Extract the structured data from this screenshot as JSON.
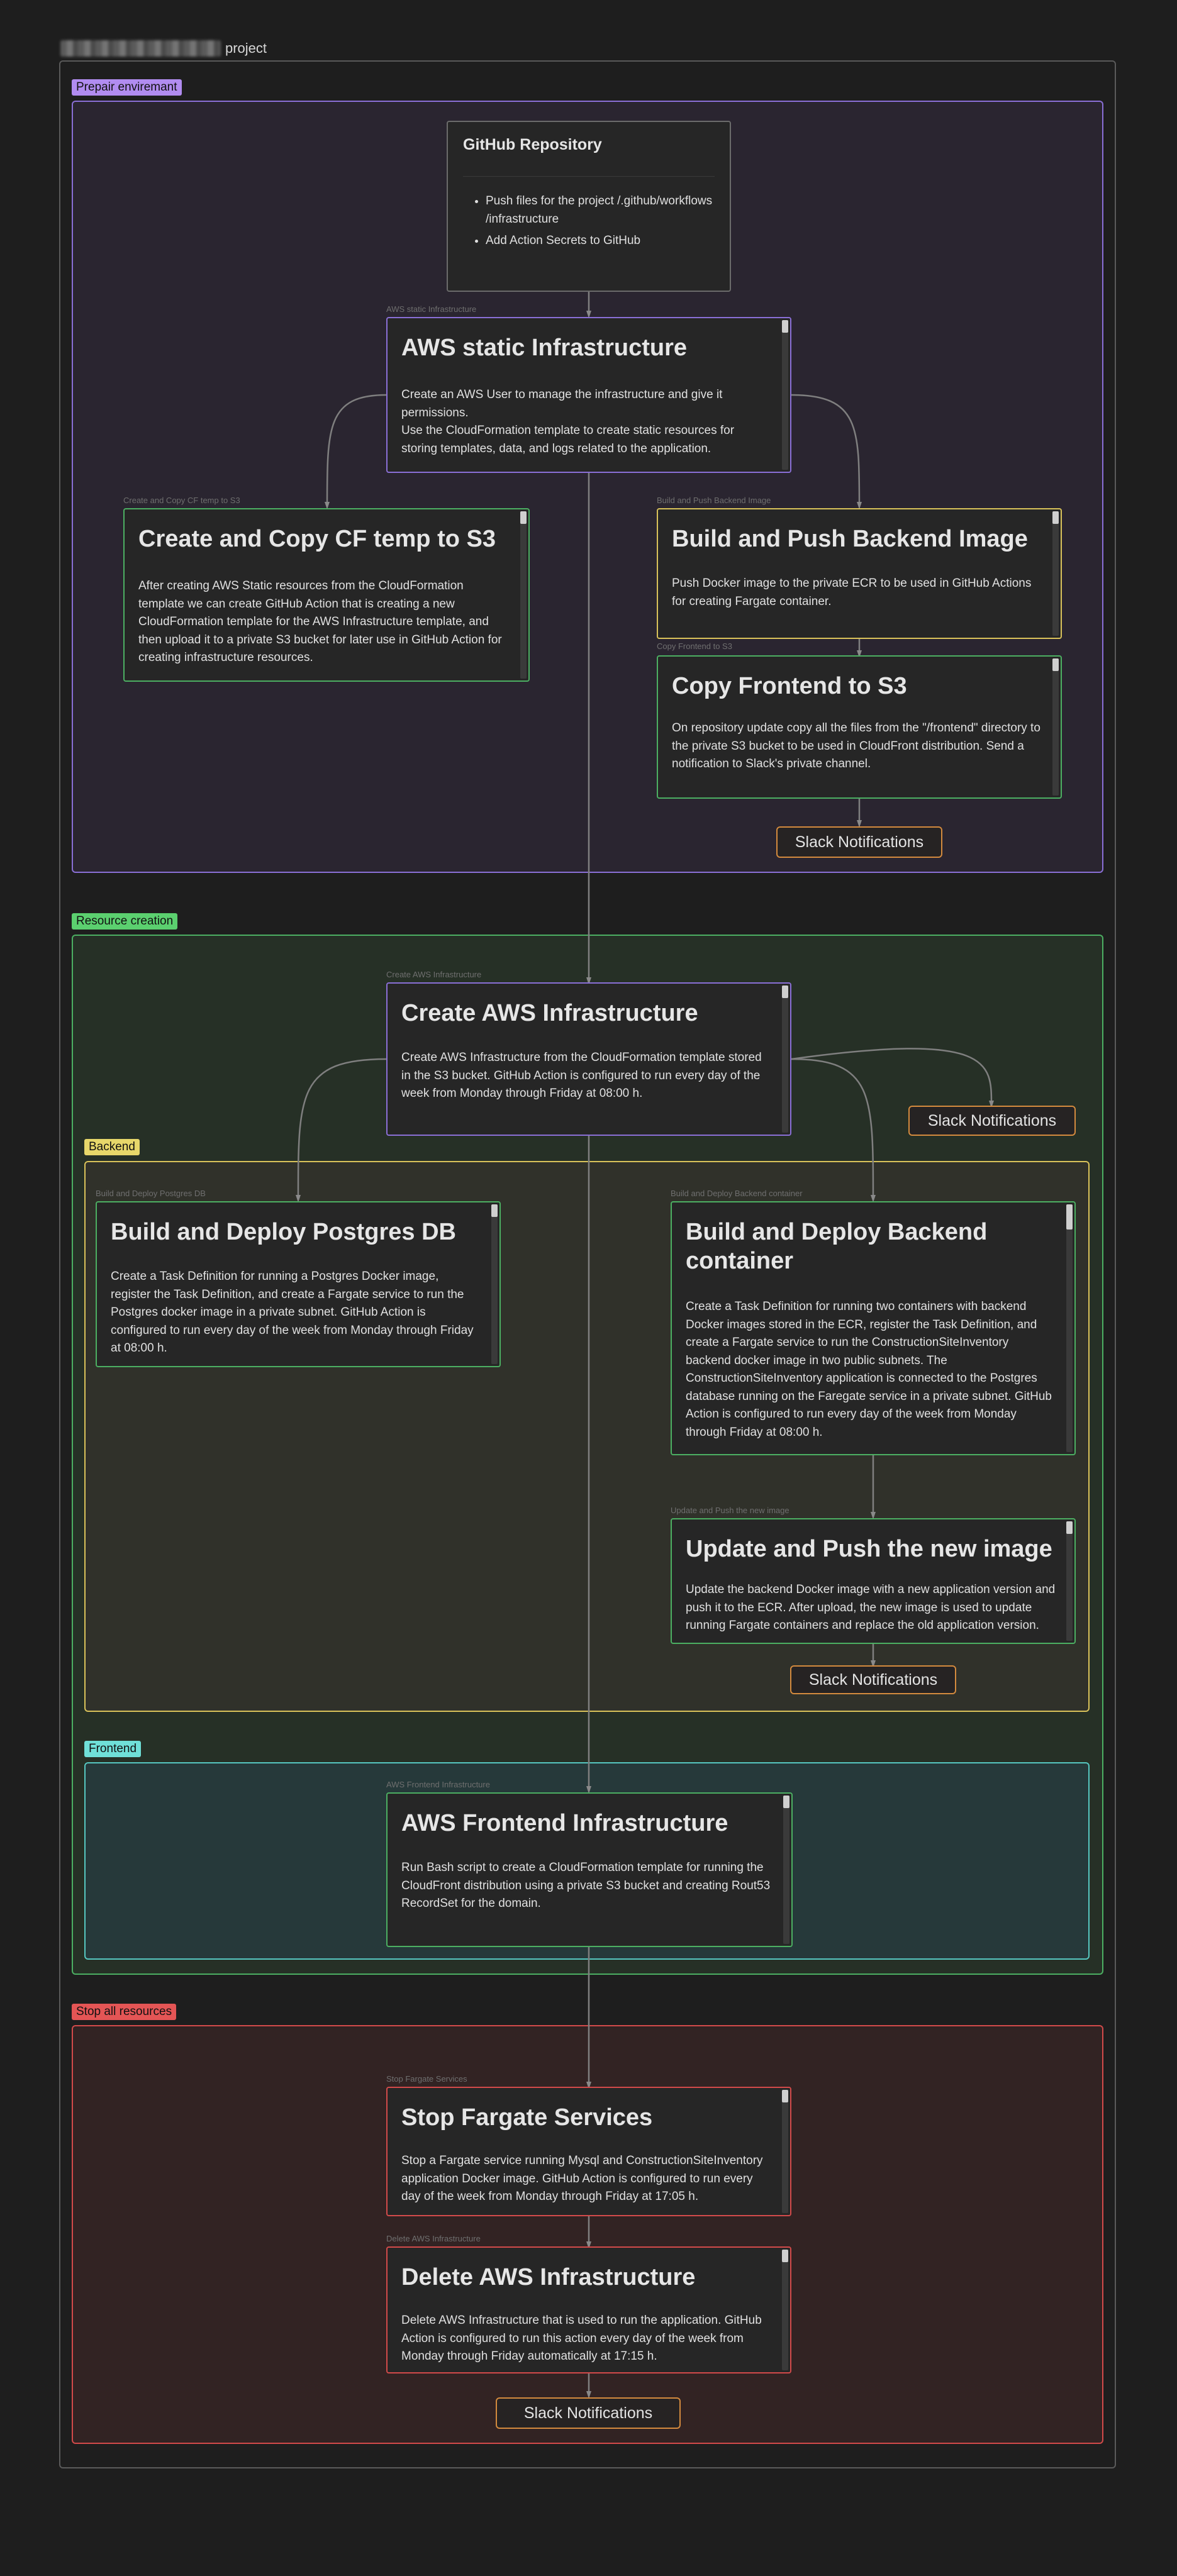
{
  "page": {
    "title": "project"
  },
  "groups": {
    "prepair": "Prepair enviremant",
    "resource": "Resource creation",
    "backend": "Backend",
    "frontend": "Frontend",
    "stop": "Stop all resources"
  },
  "colors": {
    "purple": "#8a6fd6",
    "green": "#4caf62",
    "yellow": "#d9c25a",
    "teal": "#56c7c0",
    "red": "#d24a4a",
    "orange": "#d38a3e"
  },
  "github": {
    "title": "GitHub Repository",
    "items": [
      "Push files for the project /.github/workflows /infrastructure",
      "Add Action Secrets to GitHub"
    ]
  },
  "cards": {
    "static": {
      "label": "AWS static Infrastructure",
      "title": "AWS static Infrastructure",
      "body": "Create an AWS User to manage the infrastructure and give it permissions.\nUse the CloudFormation template to create static resources for storing templates, data, and logs related to the application."
    },
    "cf": {
      "label": "Create and Copy CF temp to S3",
      "title": "Create and Copy CF temp to S3",
      "body": "After creating AWS Static resources from the CloudFormation template we can create GitHub Action that is creating a new CloudFormation template for the AWS Infrastructure template, and then upload it to a private S3 bucket for later use in GitHub Action for creating infrastructure resources."
    },
    "build_push": {
      "label": "Build and Push Backend Image",
      "title": "Build and Push Backend Image",
      "body": "Push Docker image to the private ECR to be used in GitHub Actions for creating Fargate container."
    },
    "copy_frontend": {
      "label": "Copy Frontend to S3",
      "title": "Copy Frontend to S3",
      "body": "On repository update copy all the files from the \"/frontend\" directory to the private S3 bucket to be used in CloudFront distribution. Send a notification to Slack's private channel."
    },
    "create_infra": {
      "label": "Create AWS Infrastructure",
      "title": "Create AWS Infrastructure",
      "body": "Create AWS Infrastructure from the CloudFormation template stored in the S3 bucket. GitHub Action is configured to run every day of the week from Monday through Friday at 08:00 h."
    },
    "postgres": {
      "label": "Build and Deploy Postgres DB",
      "title": "Build and Deploy Postgres DB",
      "body": "Create a Task Definition for running a Postgres Docker image, register the Task Definition, and create a Fargate service to run the Postgres docker image in a private subnet. GitHub Action is configured to run every day of the week from Monday through Friday at 08:00 h."
    },
    "backend_container": {
      "label": "Build and Deploy Backend container",
      "title": "Build and Deploy Backend container",
      "body": "Create a Task Definition for running two containers with backend Docker images stored in the ECR, register the Task Definition, and create a Fargate service to run the ConstructionSiteInventory backend docker image in two public subnets. The ConstructionSiteInventory application is connected to the Postgres database running on the Faregate service in a private subnet. GitHub Action is configured to run every day of the week from Monday through Friday at 08:00 h."
    },
    "update_image": {
      "label": "Update and Push the new image",
      "title": "Update and Push the new image",
      "body": "Update the backend Docker image with a new application version and push it to the ECR. After upload, the new image is used to update running Fargate containers and replace the old application version."
    },
    "frontend_infra": {
      "label": "AWS Frontend Infrastructure",
      "title": "AWS Frontend Infrastructure",
      "body": "Run Bash script to create a CloudFormation template for running the CloudFront distribution using a private S3 bucket and creating Rout53 RecordSet for the domain."
    },
    "stop_fargate": {
      "label": "Stop Fargate Services",
      "title": "Stop Fargate Services",
      "body": "Stop a Fargate service running Mysql and ConstructionSiteInventory application Docker image. GitHub Action is configured to run every day of the week from Monday through Friday at 17:05 h."
    },
    "delete_infra": {
      "label": "Delete AWS Infrastructure",
      "title": "Delete AWS Infrastructure",
      "body": "Delete AWS Infrastructure that is used to run the application. GitHub Action is configured to run this action every day of the week from Monday through Friday automatically at 17:15 h."
    }
  },
  "slack": {
    "s1": "Slack Notifications",
    "s2": "Slack Notifications",
    "s3": "Slack Notifications",
    "s4": "Slack Notifications"
  }
}
